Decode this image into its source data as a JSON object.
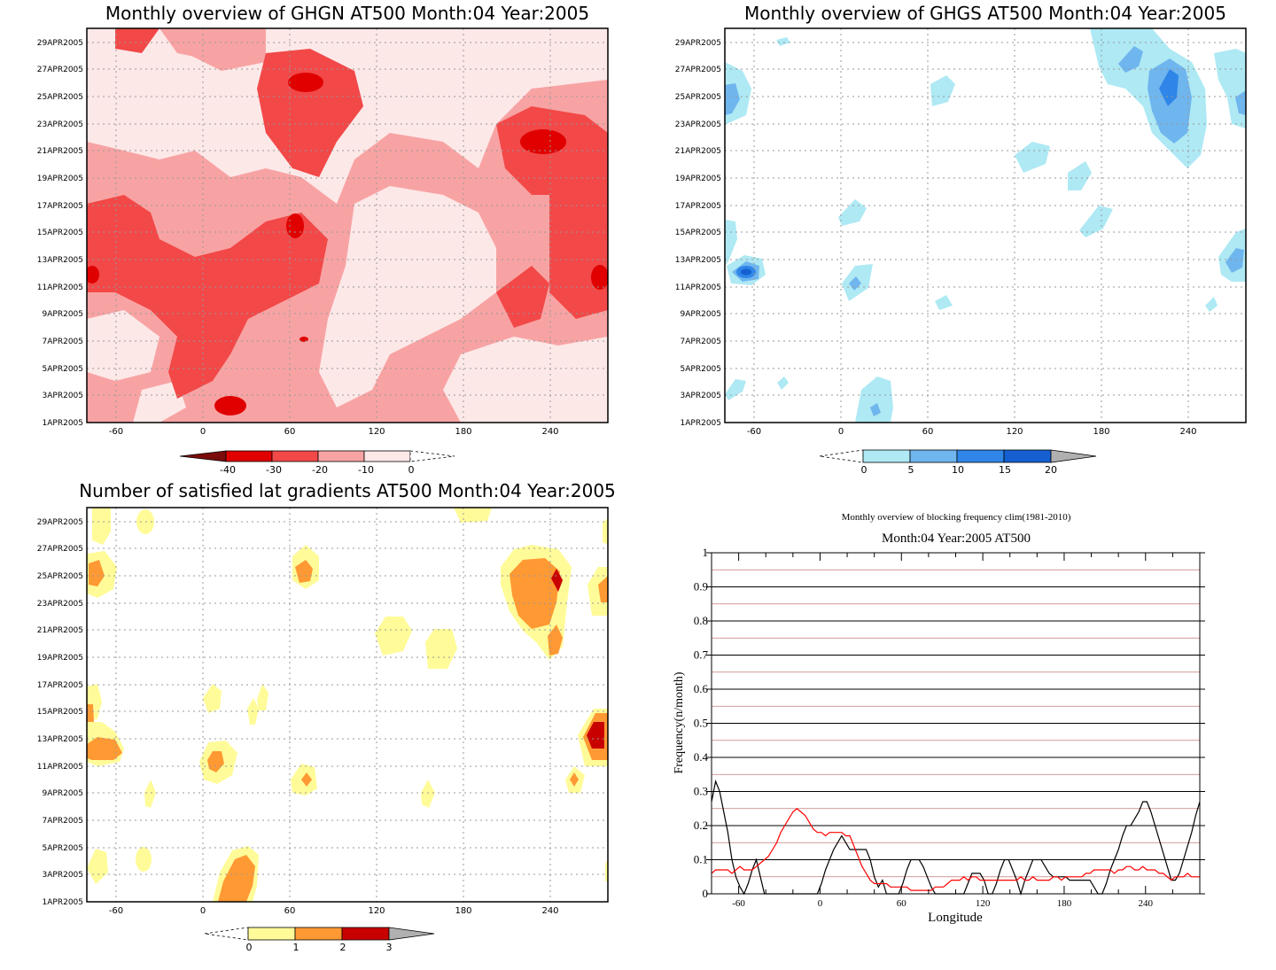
{
  "palettes": {
    "red": [
      "#7a0c0c",
      "#e00000",
      "#f24848",
      "#f8a3a3",
      "#fde8e8"
    ],
    "blue": [
      "#aee9f4",
      "#6fb5ee",
      "#2f86e8",
      "#155fd0",
      "#b0b0b0"
    ],
    "yellow": [
      "#fffb99",
      "#ff9933",
      "#c80000",
      "#b0b0b0"
    ],
    "line_black": "#000000",
    "line_red": "#ff0000",
    "grid_red": "#c47a7a"
  },
  "date_ticks": [
    "1APR2005",
    "3APR2005",
    "5APR2005",
    "7APR2005",
    "9APR2005",
    "11APR2005",
    "13APR2005",
    "15APR2005",
    "17APR2005",
    "19APR2005",
    "21APR2005",
    "23APR2005",
    "25APR2005",
    "27APR2005",
    "29APR2005"
  ],
  "lon_ticks": [
    "-60",
    "0",
    "60",
    "120",
    "180",
    "240"
  ],
  "panels": {
    "ghgn": {
      "title": "Monthly overview of GHGN AT500 Month:04 Year:2005",
      "colorbar_labels": [
        "-40",
        "-30",
        "-20",
        "-10",
        "0"
      ]
    },
    "ghgs": {
      "title": "Monthly overview of GHGS AT500 Month:04 Year:2005",
      "colorbar_labels": [
        "0",
        "5",
        "10",
        "15",
        "20"
      ]
    },
    "lat_grad": {
      "title": "Number of satisfied lat gradients AT500 Month:04 Year:2005",
      "colorbar_labels": [
        "0",
        "1",
        "2",
        "3"
      ]
    },
    "blocking": {
      "title": "Monthly overview of blocking frequency clim(1981-2010)",
      "subtitle": "Month:04 Year:2005  AT500"
    }
  },
  "chart_data": [
    {
      "type": "heatmap",
      "title": "Monthly overview of GHGN AT500 Month:04 Year:2005",
      "x_ticks": [
        "-60",
        "0",
        "60",
        "120",
        "180",
        "240"
      ],
      "y_ticks": [
        "1APR2005",
        "3APR2005",
        "5APR2005",
        "7APR2005",
        "9APR2005",
        "11APR2005",
        "13APR2005",
        "15APR2005",
        "17APR2005",
        "19APR2005",
        "21APR2005",
        "23APR2005",
        "25APR2005",
        "27APR2005",
        "29APR2005"
      ],
      "xlim": [
        -80,
        280
      ],
      "color_levels": [
        -40,
        -30,
        -20,
        -10,
        0
      ]
    },
    {
      "type": "heatmap",
      "title": "Monthly overview of GHGS AT500 Month:04 Year:2005",
      "x_ticks": [
        "-60",
        "0",
        "60",
        "120",
        "180",
        "240"
      ],
      "y_ticks": [
        "1APR2005",
        "3APR2005",
        "5APR2005",
        "7APR2005",
        "9APR2005",
        "11APR2005",
        "13APR2005",
        "15APR2005",
        "17APR2005",
        "19APR2005",
        "21APR2005",
        "23APR2005",
        "25APR2005",
        "27APR2005",
        "29APR2005"
      ],
      "xlim": [
        -80,
        280
      ],
      "color_levels": [
        0,
        5,
        10,
        15,
        20
      ]
    },
    {
      "type": "heatmap",
      "title": "Number of satisfied lat gradients AT500 Month:04 Year:2005",
      "x_ticks": [
        "-60",
        "0",
        "60",
        "120",
        "180",
        "240"
      ],
      "y_ticks": [
        "1APR2005",
        "3APR2005",
        "5APR2005",
        "7APR2005",
        "9APR2005",
        "11APR2005",
        "13APR2005",
        "15APR2005",
        "17APR2005",
        "19APR2005",
        "21APR2005",
        "23APR2005",
        "25APR2005",
        "27APR2005",
        "29APR2005"
      ],
      "xlim": [
        -80,
        280
      ],
      "color_levels": [
        0,
        1,
        2,
        3
      ]
    },
    {
      "type": "line",
      "title": "Monthly overview of blocking frequency clim(1981-2010)",
      "subtitle": "Month:04 Year:2005  AT500",
      "xlabel": "Longitude",
      "ylabel": "Frequency(n/month)",
      "xlim": [
        -80,
        280
      ],
      "ylim": [
        0,
        1
      ],
      "x_ticks": [
        "-60",
        "0",
        "60",
        "120",
        "180",
        "240"
      ],
      "y_ticks": [
        "0",
        "0.1",
        "0.2",
        "0.3",
        "0.4",
        "0.5",
        "0.6",
        "0.7",
        "0.8",
        "0.9",
        "1"
      ],
      "series": [
        {
          "color": "#000000",
          "x": [
            -80,
            -77,
            -74,
            -71,
            -68,
            -65,
            -62,
            -59,
            -56,
            -53,
            -50,
            -47,
            -44,
            -41,
            -38,
            -35,
            -32,
            -29,
            -26,
            -23,
            -20,
            -17,
            -14,
            -11,
            -8,
            -5,
            -2,
            1,
            4,
            7,
            10,
            13,
            16,
            19,
            22,
            25,
            28,
            31,
            34,
            37,
            40,
            43,
            46,
            49,
            52,
            55,
            58,
            61,
            64,
            67,
            70,
            73,
            76,
            79,
            82,
            85,
            88,
            91,
            94,
            97,
            100,
            103,
            106,
            109,
            112,
            115,
            118,
            121,
            124,
            127,
            130,
            133,
            136,
            139,
            142,
            145,
            148,
            151,
            154,
            157,
            160,
            163,
            166,
            169,
            172,
            175,
            178,
            181,
            184,
            187,
            190,
            193,
            196,
            199,
            202,
            205,
            208,
            211,
            214,
            217,
            220,
            223,
            226,
            229,
            232,
            235,
            238,
            241,
            244,
            247,
            250,
            253,
            256,
            259,
            262,
            265,
            268,
            271,
            274,
            277,
            280
          ],
          "y": [
            0.27,
            0.33,
            0.3,
            0.24,
            0.18,
            0.1,
            0.05,
            0.02,
            0,
            0.03,
            0.07,
            0.1,
            0.05,
            0,
            0,
            0,
            0,
            0,
            0,
            0,
            0,
            0,
            0,
            0,
            0,
            0,
            0,
            0.03,
            0.07,
            0.1,
            0.13,
            0.15,
            0.17,
            0.15,
            0.13,
            0.13,
            0.13,
            0.13,
            0.13,
            0.1,
            0.05,
            0.02,
            0.04,
            0,
            0,
            0,
            0,
            0.03,
            0.07,
            0.1,
            0.1,
            0.1,
            0.08,
            0.05,
            0.02,
            0,
            0,
            0,
            0,
            0,
            0,
            0,
            0,
            0.03,
            0.06,
            0.06,
            0.06,
            0.04,
            0,
            0,
            0.03,
            0.07,
            0.1,
            0.1,
            0.07,
            0.04,
            0,
            0.04,
            0.07,
            0.1,
            0.1,
            0.1,
            0.08,
            0.06,
            0.05,
            0.05,
            0.05,
            0.05,
            0.04,
            0.04,
            0.04,
            0.04,
            0.04,
            0.04,
            0.02,
            0,
            0,
            0.03,
            0.07,
            0.1,
            0.13,
            0.17,
            0.2,
            0.2,
            0.22,
            0.24,
            0.27,
            0.27,
            0.24,
            0.2,
            0.16,
            0.12,
            0.08,
            0.04,
            0.04,
            0.06,
            0.1,
            0.14,
            0.18,
            0.23,
            0.27
          ]
        },
        {
          "color": "#ff0000",
          "x": [
            -80,
            -77,
            -74,
            -71,
            -68,
            -65,
            -62,
            -59,
            -56,
            -53,
            -50,
            -47,
            -44,
            -41,
            -38,
            -35,
            -32,
            -29,
            -26,
            -23,
            -20,
            -17,
            -14,
            -11,
            -8,
            -5,
            -2,
            1,
            4,
            7,
            10,
            13,
            16,
            19,
            22,
            25,
            28,
            31,
            34,
            37,
            40,
            43,
            46,
            49,
            52,
            55,
            58,
            61,
            64,
            67,
            70,
            73,
            76,
            79,
            82,
            85,
            88,
            91,
            94,
            97,
            100,
            103,
            106,
            109,
            112,
            115,
            118,
            121,
            124,
            127,
            130,
            133,
            136,
            139,
            142,
            145,
            148,
            151,
            154,
            157,
            160,
            163,
            166,
            169,
            172,
            175,
            178,
            181,
            184,
            187,
            190,
            193,
            196,
            199,
            202,
            205,
            208,
            211,
            214,
            217,
            220,
            223,
            226,
            229,
            232,
            235,
            238,
            241,
            244,
            247,
            250,
            253,
            256,
            259,
            262,
            265,
            268,
            271,
            274,
            277,
            280
          ],
          "y": [
            0.06,
            0.07,
            0.07,
            0.07,
            0.07,
            0.06,
            0.07,
            0.08,
            0.07,
            0.07,
            0.07,
            0.08,
            0.09,
            0.1,
            0.11,
            0.13,
            0.15,
            0.18,
            0.2,
            0.22,
            0.24,
            0.25,
            0.24,
            0.23,
            0.21,
            0.19,
            0.18,
            0.18,
            0.17,
            0.18,
            0.18,
            0.18,
            0.18,
            0.17,
            0.17,
            0.14,
            0.11,
            0.08,
            0.06,
            0.04,
            0.03,
            0.03,
            0.03,
            0.03,
            0.02,
            0.02,
            0.02,
            0.02,
            0.02,
            0.01,
            0.01,
            0.01,
            0.01,
            0.01,
            0.01,
            0.02,
            0.02,
            0.02,
            0.03,
            0.04,
            0.04,
            0.04,
            0.05,
            0.04,
            0.05,
            0.05,
            0.04,
            0.04,
            0.04,
            0.04,
            0.04,
            0.04,
            0.04,
            0.04,
            0.04,
            0.04,
            0.05,
            0.04,
            0.04,
            0.05,
            0.04,
            0.04,
            0.04,
            0.04,
            0.05,
            0.05,
            0.04,
            0.05,
            0.05,
            0.05,
            0.05,
            0.05,
            0.06,
            0.06,
            0.07,
            0.07,
            0.07,
            0.07,
            0.07,
            0.06,
            0.07,
            0.07,
            0.08,
            0.08,
            0.07,
            0.07,
            0.08,
            0.07,
            0.07,
            0.07,
            0.06,
            0.06,
            0.05,
            0.04,
            0.05,
            0.05,
            0.05,
            0.06,
            0.05,
            0.05,
            0.05
          ]
        }
      ]
    }
  ]
}
